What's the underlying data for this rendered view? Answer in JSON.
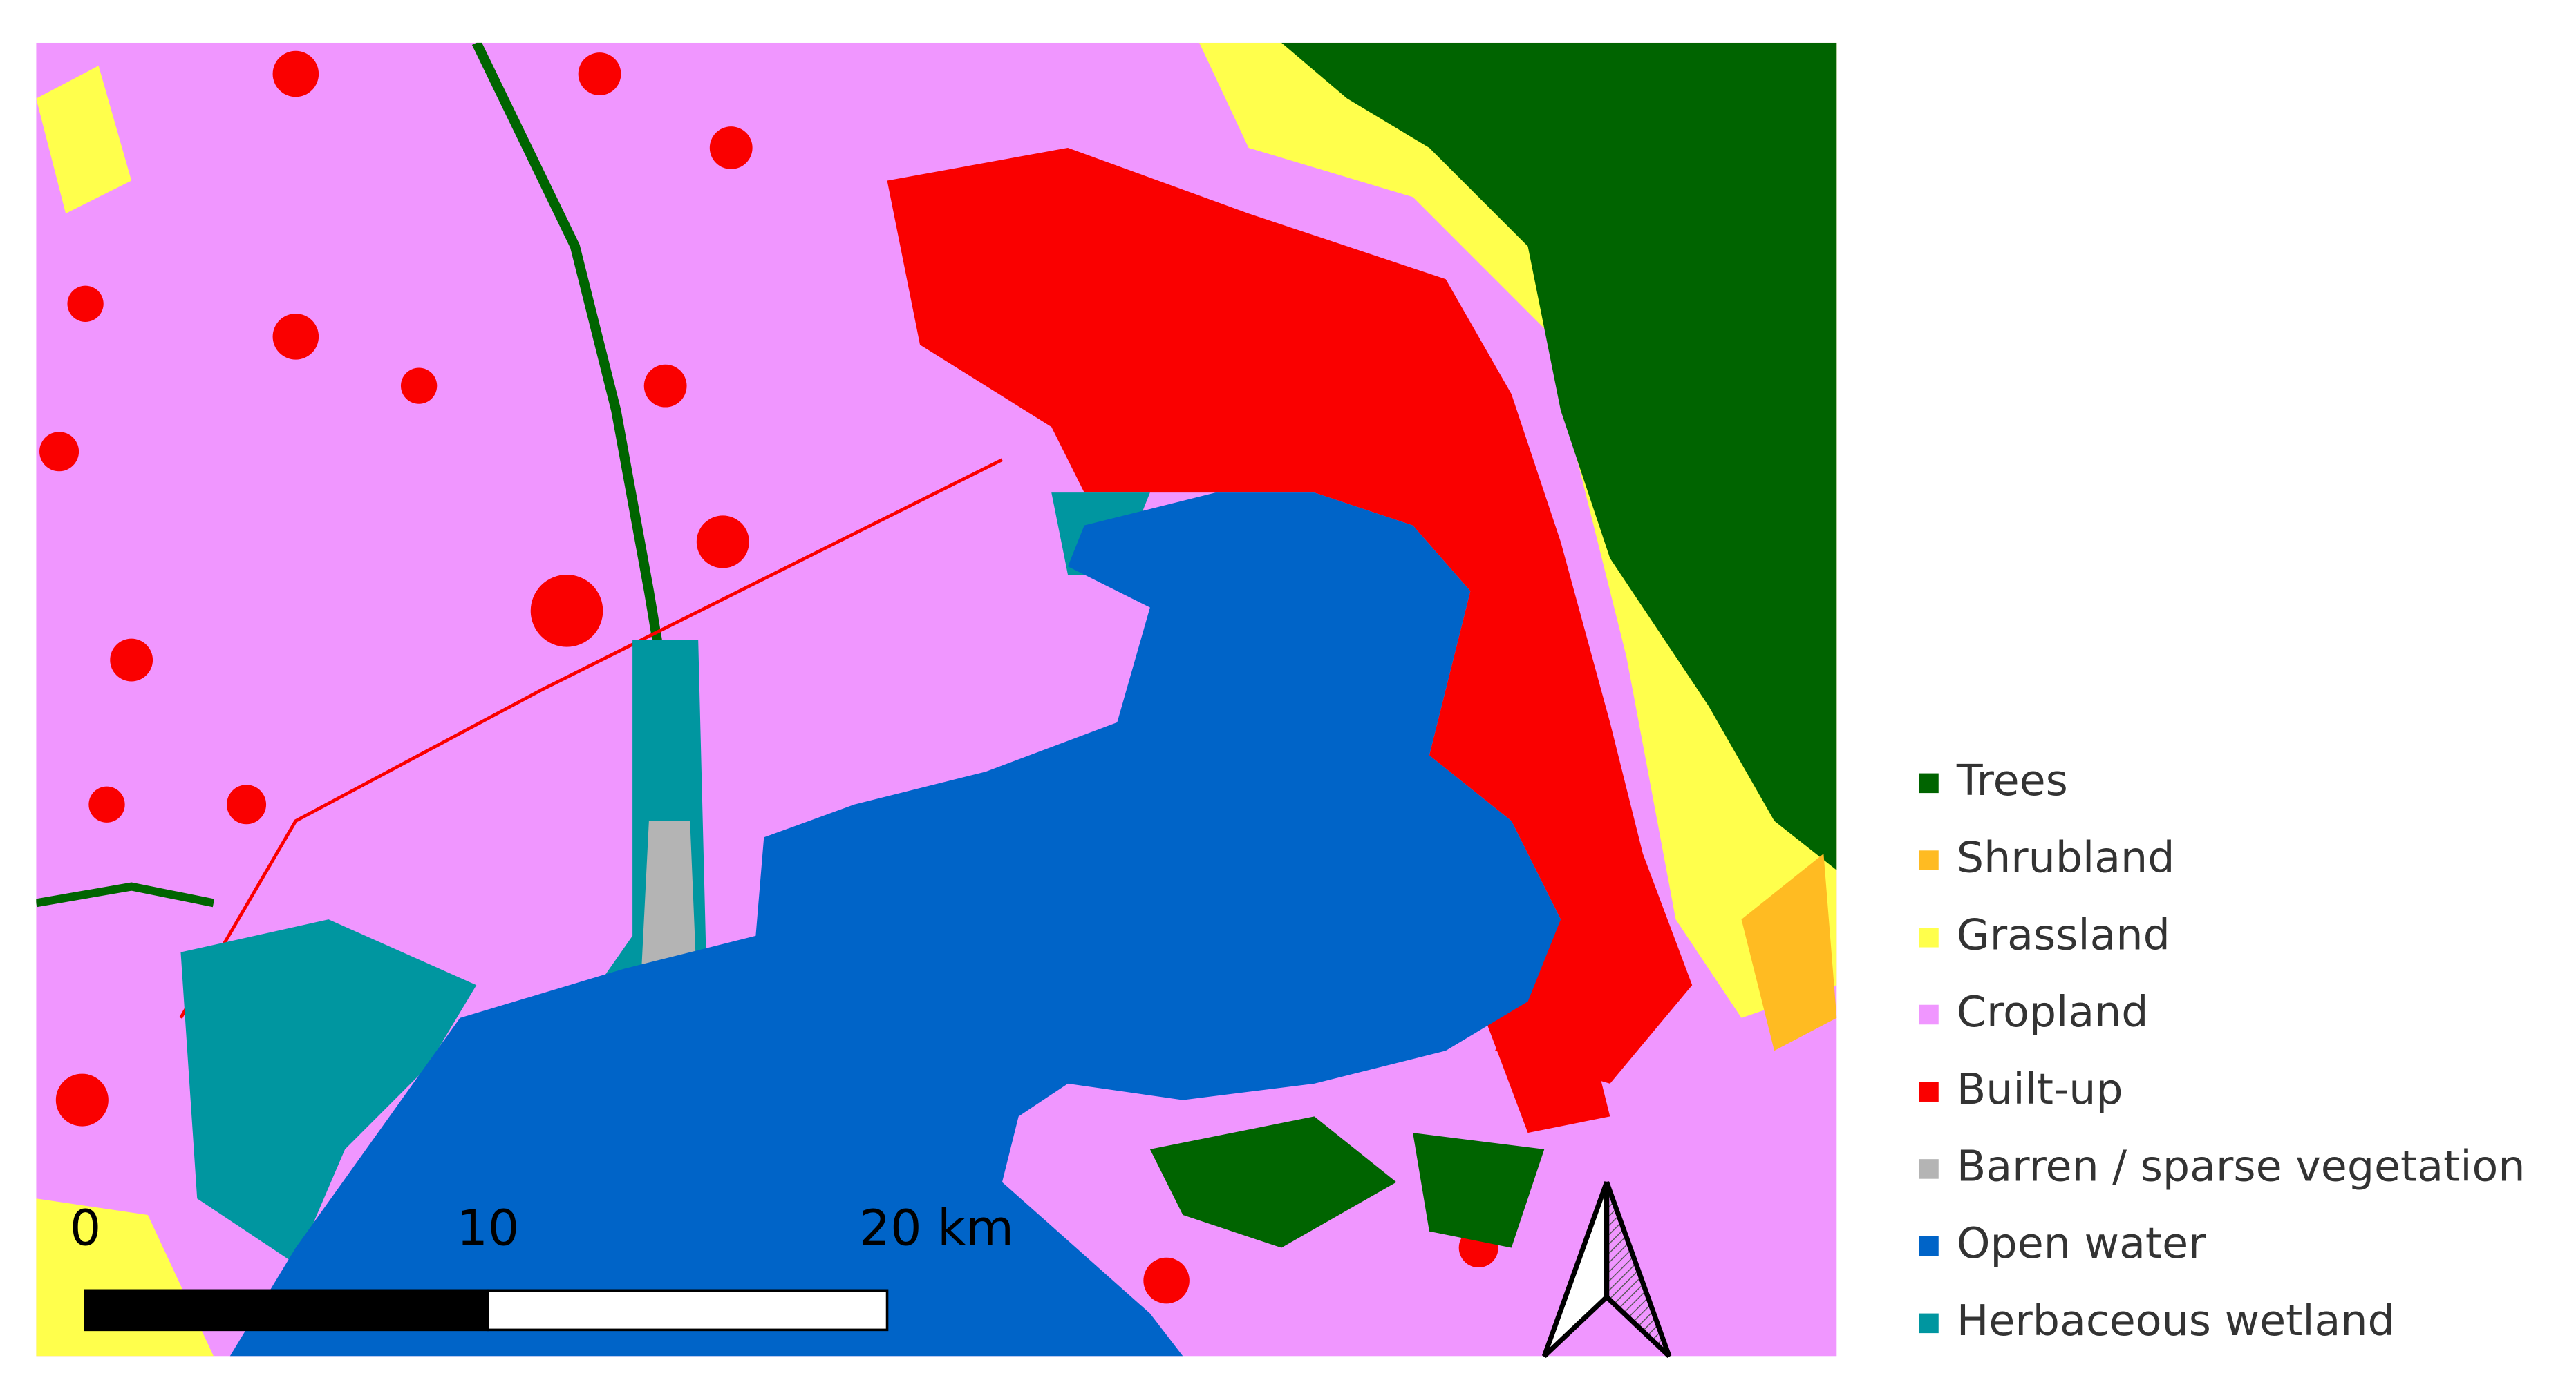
{
  "legend": {
    "items": [
      {
        "label": "Trees",
        "color": "#006400"
      },
      {
        "label": "Shrubland",
        "color": "#ffbb22"
      },
      {
        "label": "Grassland",
        "color": "#ffff4c"
      },
      {
        "label": "Cropland",
        "color": "#f096ff"
      },
      {
        "label": "Built-up",
        "color": "#fa0000"
      },
      {
        "label": "Barren / sparse vegetation",
        "color": "#b4b4b4"
      },
      {
        "label": "Open water",
        "color": "#0064c8"
      },
      {
        "label": "Herbaceous wetland",
        "color": "#0096a0"
      }
    ]
  },
  "scale_bar": {
    "labels": [
      "0",
      "10",
      "20 km"
    ]
  }
}
